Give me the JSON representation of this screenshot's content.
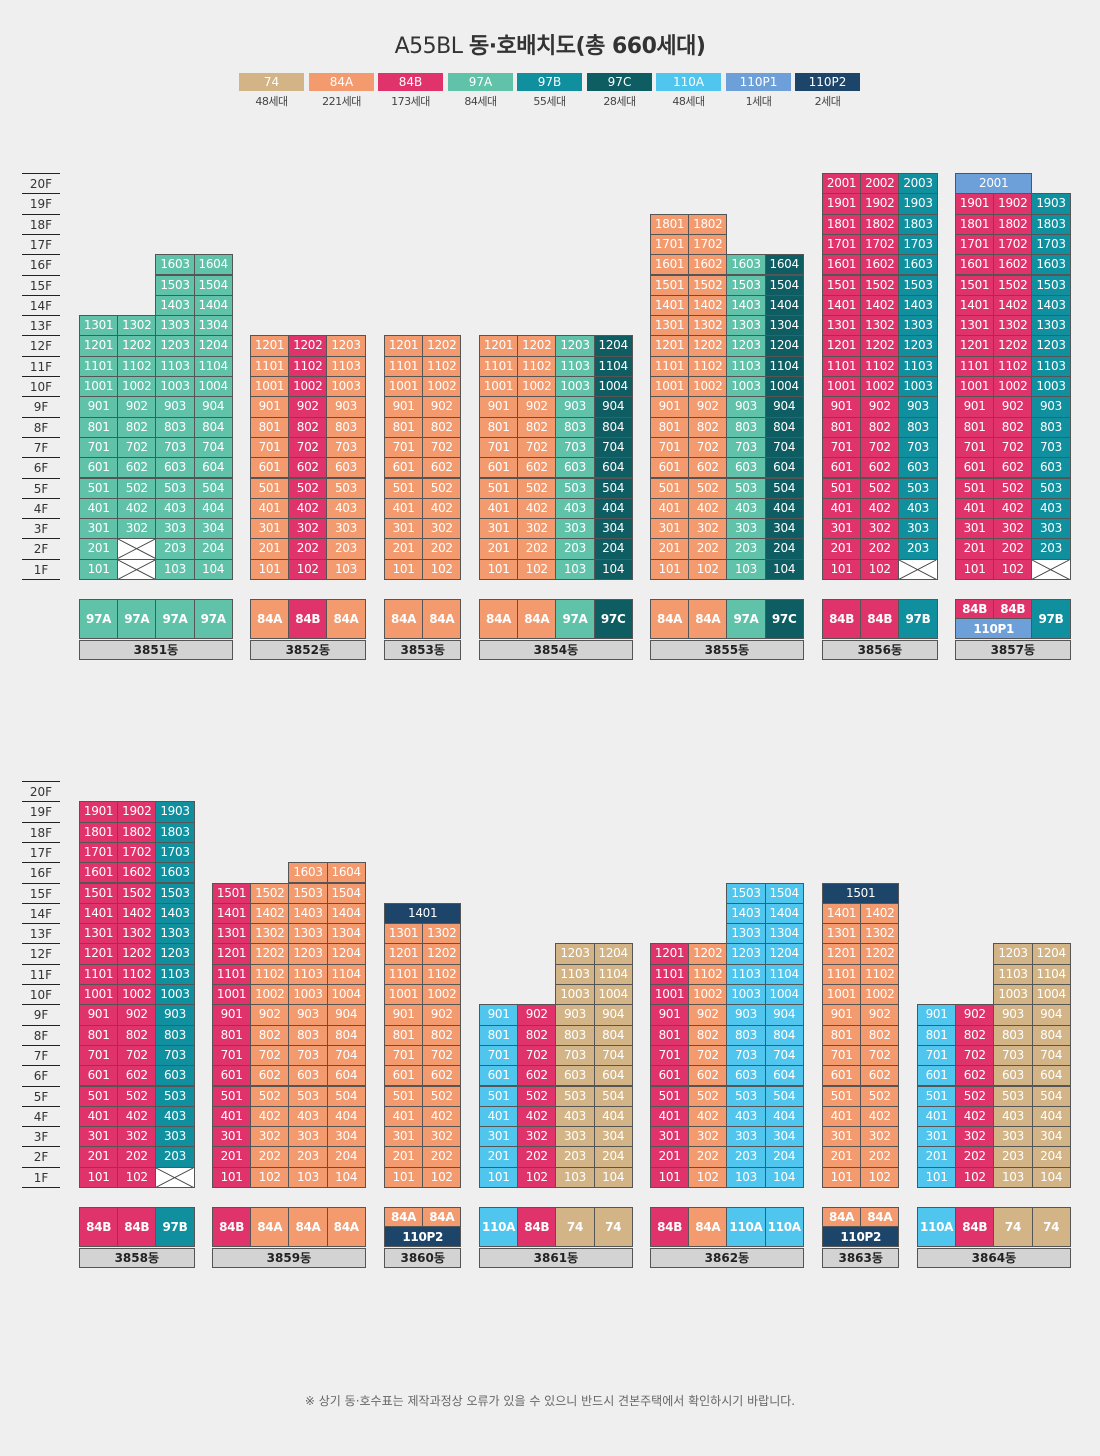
{
  "title": {
    "prefix": "A55BL ",
    "main": "동·호배치도(총 660세대)"
  },
  "types": [
    {
      "key": "74",
      "label": "74",
      "count": "48세대",
      "color": "#d2b486"
    },
    {
      "key": "84A",
      "label": "84A",
      "count": "221세대",
      "color": "#f39a6e"
    },
    {
      "key": "84B",
      "label": "84B",
      "count": "173세대",
      "color": "#e1336b"
    },
    {
      "key": "97A",
      "label": "97A",
      "count": "84세대",
      "color": "#60c2a9"
    },
    {
      "key": "97B",
      "label": "97B",
      "count": "55세대",
      "color": "#10909f"
    },
    {
      "key": "97C",
      "label": "97C",
      "count": "28세대",
      "color": "#0e5d63"
    },
    {
      "key": "110A",
      "label": "110A",
      "count": "48세대",
      "color": "#50c5ee"
    },
    {
      "key": "110P1",
      "label": "110P1",
      "count": "1세대",
      "color": "#6d9fd8"
    },
    {
      "key": "110P2",
      "label": "110P2",
      "count": "2세대",
      "color": "#1d4469"
    }
  ],
  "floor_labels": [
    "20F",
    "19F",
    "18F",
    "17F",
    "16F",
    "15F",
    "14F",
    "13F",
    "12F",
    "11F",
    "10F",
    "9F",
    "8F",
    "7F",
    "6F",
    "5F",
    "4F",
    "3F",
    "2F",
    "1F"
  ],
  "buildings": [
    {
      "name": "3851동",
      "row": 0,
      "lines": [
        {
          "type": "97A",
          "top": 13,
          "empty": []
        },
        {
          "type": "97A",
          "top": 13,
          "empty": [
            1,
            2
          ]
        },
        {
          "type": "97A",
          "top": 16,
          "empty": []
        },
        {
          "type": "97A",
          "top": 16,
          "empty": []
        }
      ],
      "type_labels": [
        [
          "97A"
        ],
        [
          "97A"
        ],
        [
          "97A"
        ],
        [
          "97A"
        ]
      ]
    },
    {
      "name": "3852동",
      "row": 0,
      "lines": [
        {
          "type": "84A",
          "top": 12,
          "empty": []
        },
        {
          "type": "84B",
          "top": 12,
          "empty": []
        },
        {
          "type": "84A",
          "top": 12,
          "empty": []
        }
      ],
      "type_labels": [
        [
          "84A"
        ],
        [
          "84B"
        ],
        [
          "84A"
        ]
      ]
    },
    {
      "name": "3853동",
      "row": 0,
      "lines": [
        {
          "type": "84A",
          "top": 12,
          "empty": []
        },
        {
          "type": "84A",
          "top": 12,
          "empty": []
        }
      ],
      "type_labels": [
        [
          "84A"
        ],
        [
          "84A"
        ]
      ]
    },
    {
      "name": "3854동",
      "row": 0,
      "lines": [
        {
          "type": "84A",
          "top": 12,
          "empty": []
        },
        {
          "type": "84A",
          "top": 12,
          "empty": []
        },
        {
          "type": "97A",
          "top": 12,
          "empty": []
        },
        {
          "type": "97C",
          "top": 12,
          "empty": []
        }
      ],
      "type_labels": [
        [
          "84A"
        ],
        [
          "84A"
        ],
        [
          "97A"
        ],
        [
          "97C"
        ]
      ]
    },
    {
      "name": "3855동",
      "row": 0,
      "lines": [
        {
          "type": "84A",
          "top": 18,
          "empty": []
        },
        {
          "type": "84A",
          "top": 18,
          "empty": []
        },
        {
          "type": "97A",
          "top": 16,
          "empty": []
        },
        {
          "type": "97C",
          "top": 16,
          "empty": []
        }
      ],
      "type_labels": [
        [
          "84A"
        ],
        [
          "84A"
        ],
        [
          "97A"
        ],
        [
          "97C"
        ]
      ]
    },
    {
      "name": "3856동",
      "row": 0,
      "lines": [
        {
          "type": "84B",
          "top": 20,
          "empty": []
        },
        {
          "type": "84B",
          "top": 20,
          "empty": []
        },
        {
          "type": "97B",
          "top": 20,
          "empty": [
            1
          ]
        }
      ],
      "type_labels": [
        [
          "84B"
        ],
        [
          "84B"
        ],
        [
          "97B"
        ]
      ]
    },
    {
      "name": "3857동",
      "row": 0,
      "lines": [
        {
          "type": "84B",
          "top": 19,
          "empty": []
        },
        {
          "type": "84B",
          "top": 19,
          "empty": []
        },
        {
          "type": "97B",
          "top": 19,
          "empty": [
            1
          ]
        }
      ],
      "penthouse": {
        "floor": 20,
        "span": 2,
        "type": "110P1",
        "label": "2001"
      },
      "type_labels": [
        [
          "84B",
          "110P1"
        ],
        [
          "84B"
        ],
        [
          "97B"
        ]
      ]
    },
    {
      "name": "3858동",
      "row": 1,
      "lines": [
        {
          "type": "84B",
          "top": 19,
          "empty": []
        },
        {
          "type": "84B",
          "top": 19,
          "empty": []
        },
        {
          "type": "97B",
          "top": 19,
          "empty": [
            1
          ]
        }
      ],
      "type_labels": [
        [
          "84B"
        ],
        [
          "84B"
        ],
        [
          "97B"
        ]
      ]
    },
    {
      "name": "3859동",
      "row": 1,
      "lines": [
        {
          "type": "84B",
          "top": 15,
          "empty": []
        },
        {
          "type": "84A",
          "top": 15,
          "empty": []
        },
        {
          "type": "84A",
          "top": 16,
          "empty": []
        },
        {
          "type": "84A",
          "top": 16,
          "empty": []
        }
      ],
      "type_labels": [
        [
          "84B"
        ],
        [
          "84A"
        ],
        [
          "84A"
        ],
        [
          "84A"
        ]
      ]
    },
    {
      "name": "3860동",
      "row": 1,
      "lines": [
        {
          "type": "84A",
          "top": 13,
          "empty": []
        },
        {
          "type": "84A",
          "top": 13,
          "empty": []
        }
      ],
      "penthouse": {
        "floor": 14,
        "span": 2,
        "type": "110P2",
        "label": "1401"
      },
      "type_labels": [
        [
          "84A",
          "110P2"
        ],
        [
          "84A"
        ]
      ]
    },
    {
      "name": "3861동",
      "row": 1,
      "lines": [
        {
          "type": "110A",
          "top": 9,
          "empty": []
        },
        {
          "type": "84B",
          "top": 9,
          "empty": []
        },
        {
          "type": "74",
          "top": 12,
          "empty": []
        },
        {
          "type": "74",
          "top": 12,
          "empty": []
        }
      ],
      "type_labels": [
        [
          "110A"
        ],
        [
          "84B"
        ],
        [
          "74"
        ],
        [
          "74"
        ]
      ]
    },
    {
      "name": "3862동",
      "row": 1,
      "lines": [
        {
          "type": "84B",
          "top": 12,
          "empty": []
        },
        {
          "type": "84A",
          "top": 12,
          "empty": []
        },
        {
          "type": "110A",
          "top": 15,
          "empty": []
        },
        {
          "type": "110A",
          "top": 15,
          "empty": []
        }
      ],
      "type_labels": [
        [
          "84B"
        ],
        [
          "84A"
        ],
        [
          "110A"
        ],
        [
          "110A"
        ]
      ]
    },
    {
      "name": "3863동",
      "row": 1,
      "lines": [
        {
          "type": "84A",
          "top": 14,
          "empty": []
        },
        {
          "type": "84A",
          "top": 14,
          "empty": []
        }
      ],
      "penthouse": {
        "floor": 15,
        "span": 2,
        "type": "110P2",
        "label": "1501"
      },
      "type_labels": [
        [
          "84A",
          "110P2"
        ],
        [
          "84A"
        ]
      ]
    },
    {
      "name": "3864동",
      "row": 1,
      "lines": [
        {
          "type": "110A",
          "top": 9,
          "empty": []
        },
        {
          "type": "84B",
          "top": 9,
          "empty": []
        },
        {
          "type": "74",
          "top": 12,
          "empty": []
        },
        {
          "type": "74",
          "top": 12,
          "empty": []
        }
      ],
      "type_labels": [
        [
          "110A"
        ],
        [
          "84B"
        ],
        [
          "74"
        ],
        [
          "74"
        ]
      ]
    }
  ],
  "cell_overrides": {
    "3858동|2|1": {
      "type": "97B"
    }
  },
  "footnote": "※ 상기 동·호수표는 제작과정상 오류가 있을 수 있으니 반드시 견본주택에서 확인하시기 바랍니다."
}
